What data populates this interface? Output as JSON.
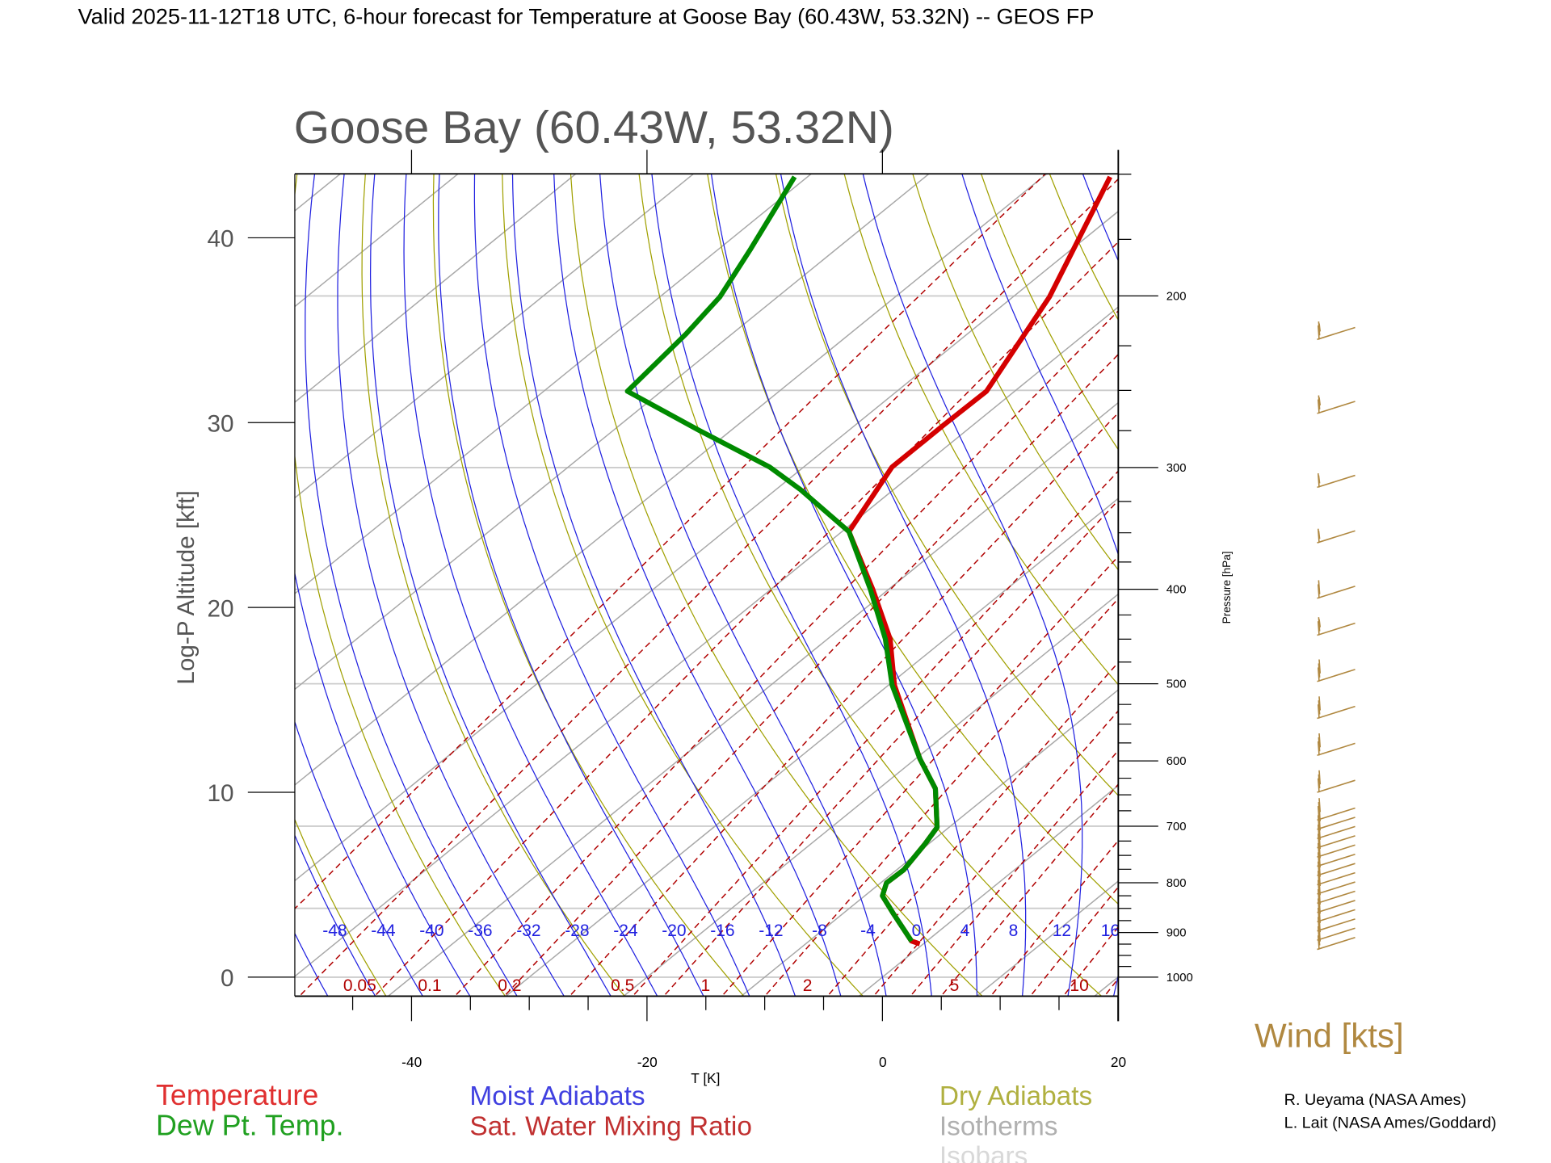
{
  "header": {
    "title": "Valid 2025-11-12T18 UTC, 6-hour forecast for Temperature at Goose Bay (60.43W, 53.32N) -- GEOS FP"
  },
  "chart_data": {
    "type": "line",
    "subtype": "skew-T log-P diagram",
    "title": "Goose Bay (60.43W, 53.32N)",
    "xlabel": "T [K]",
    "ylabel": "Log-P Altitude [kft]",
    "y2label": "Pressure [hPa]",
    "xlim": [
      -50,
      20
    ],
    "ylim": [
      -1,
      43.5
    ],
    "x_ticks": [
      "-40",
      "-20",
      "0",
      "20"
    ],
    "y_ticks": [
      "0",
      "10",
      "20",
      "30",
      "40"
    ],
    "pressure_ticks": [
      "200",
      "300",
      "400",
      "500",
      "600",
      "700",
      "800",
      "900",
      "1000"
    ],
    "isobar_lines_hpa": [
      200,
      250,
      300,
      400,
      500,
      700,
      850,
      1000
    ],
    "moist_adiabat_labels": [
      "-48",
      "-44",
      "-40",
      "-36",
      "-32",
      "-28",
      "-24",
      "-20",
      "-16",
      "-12",
      "-8",
      "-4",
      "0",
      "4",
      "8",
      "12",
      "16"
    ],
    "mixing_ratio_labels": [
      "0.05",
      "0.1",
      "0.2",
      "0.5",
      "1",
      "2",
      "5",
      "10"
    ],
    "series": [
      {
        "name": "Temperature",
        "color": "#d40000",
        "points_T_C_alt_kft": [
          [
            -0.3,
            1.8
          ],
          [
            -1.3,
            1.95
          ],
          [
            -5.6,
            3.4
          ],
          [
            -8.5,
            4.4
          ],
          [
            -9.5,
            5.1
          ],
          [
            -9.4,
            5.8
          ],
          [
            -10.3,
            7.2
          ],
          [
            -11.0,
            8.1
          ],
          [
            -15.2,
            10.2
          ],
          [
            -19.6,
            11.8
          ],
          [
            -29.5,
            15.8
          ],
          [
            -34.7,
            18.3
          ],
          [
            -41.4,
            21.0
          ],
          [
            -49.4,
            24.1
          ],
          [
            -52.5,
            27.6
          ],
          [
            -52.5,
            29.9
          ],
          [
            -52.4,
            31.7
          ],
          [
            -56.9,
            36.8
          ],
          [
            -64.3,
            43.3
          ]
        ]
      },
      {
        "name": "Dew Pt. Temp.",
        "color": "#008a00",
        "points_T_C_alt_kft": [
          [
            -1.3,
            1.95
          ],
          [
            -5.6,
            3.4
          ],
          [
            -8.5,
            4.4
          ],
          [
            -9.5,
            5.1
          ],
          [
            -9.4,
            5.8
          ],
          [
            -10.3,
            7.2
          ],
          [
            -11.0,
            8.1
          ],
          [
            -15.2,
            10.2
          ],
          [
            -19.6,
            11.8
          ],
          [
            -29.7,
            15.8
          ],
          [
            -35.1,
            18.3
          ],
          [
            -41.6,
            21.0
          ],
          [
            -49.4,
            24.1
          ],
          [
            -58.0,
            26.4
          ],
          [
            -62.9,
            27.6
          ],
          [
            -72.8,
            29.6
          ],
          [
            -82.9,
            31.7
          ],
          [
            -83.9,
            34.8
          ],
          [
            -84.9,
            36.8
          ],
          [
            -87.3,
            39.4
          ],
          [
            -91.1,
            43.3
          ]
        ]
      }
    ],
    "wind_barbs_kts": [
      {
        "alt_kft": 34.5,
        "speed": 25
      },
      {
        "alt_kft": 30.5,
        "speed": 25
      },
      {
        "alt_kft": 26.5,
        "speed": 15
      },
      {
        "alt_kft": 23.5,
        "speed": 15
      },
      {
        "alt_kft": 20.5,
        "speed": 20
      },
      {
        "alt_kft": 18.5,
        "speed": 25
      },
      {
        "alt_kft": 16,
        "speed": 30
      },
      {
        "alt_kft": 14,
        "speed": 30
      },
      {
        "alt_kft": 12,
        "speed": 30
      },
      {
        "alt_kft": 10,
        "speed": 30
      },
      {
        "alt_kft": 8.5,
        "speed": 30
      },
      {
        "alt_kft": 8,
        "speed": 30
      },
      {
        "alt_kft": 7.5,
        "speed": 30
      },
      {
        "alt_kft": 7,
        "speed": 30
      },
      {
        "alt_kft": 6.5,
        "speed": 30
      },
      {
        "alt_kft": 6,
        "speed": 30
      },
      {
        "alt_kft": 5.5,
        "speed": 30
      },
      {
        "alt_kft": 5,
        "speed": 30
      },
      {
        "alt_kft": 4.5,
        "speed": 30
      },
      {
        "alt_kft": 4,
        "speed": 30
      },
      {
        "alt_kft": 3.5,
        "speed": 30
      },
      {
        "alt_kft": 3,
        "speed": 30
      },
      {
        "alt_kft": 2.5,
        "speed": 30
      },
      {
        "alt_kft": 2,
        "speed": 30
      },
      {
        "alt_kft": 1.5,
        "speed": 30
      }
    ],
    "wind_label": "Wind [kts]",
    "legend": {
      "temperature": "Temperature",
      "dewpoint": "Dew Pt. Temp.",
      "moist": "Moist Adiabats",
      "mixing": "Sat. Water Mixing Ratio",
      "dry": "Dry Adiabats",
      "isotherms": "Isotherms",
      "isobars": "Isobars"
    },
    "colors": {
      "temperature": "#d40000",
      "dewpoint": "#008a00",
      "moist": "#2020e0",
      "mixing": "#b00000",
      "dry": "#a0a000",
      "isotherm": "#a8a8a8",
      "isobar": "#cccccc",
      "wind": "#b08840"
    }
  },
  "credits": [
    "R. Ueyama (NASA Ames)",
    "L. Lait (NASA Ames/Goddard)"
  ]
}
